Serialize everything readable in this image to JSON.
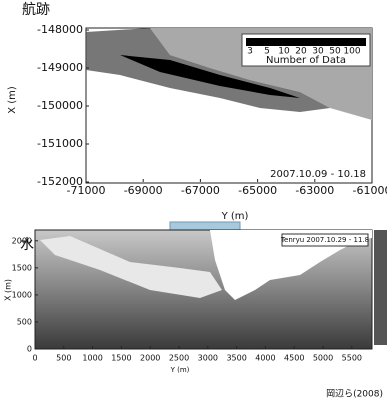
{
  "top": {
    "heading": "航跡",
    "xlabel": "Y (m)",
    "ylabel": "X (m)",
    "xlim": [
      -71000,
      -61000
    ],
    "xticks": [
      -71000,
      -69000,
      -67000,
      -65000,
      -63000,
      -61000
    ],
    "ylim": [
      -152000,
      -148000
    ],
    "yticks": [
      -152000,
      -151000,
      -150000,
      -149000,
      -148000
    ],
    "legend_ticks": [
      3,
      5,
      10,
      20,
      30,
      50,
      100
    ],
    "legend_title": "Number of Data",
    "date": "2007.10.09 - 10.18"
  },
  "bottom": {
    "heading": "水深図",
    "xlabel": "Y (m)",
    "ylabel": "X (m)",
    "xlim": [
      0,
      5850
    ],
    "xticks": [
      0,
      500,
      1000,
      1500,
      2000,
      2500,
      3000,
      3500,
      4000,
      4500,
      5000,
      5500
    ],
    "ylim": [
      0,
      2200
    ],
    "yticks": [
      0,
      500,
      1000,
      1500,
      2000
    ],
    "box_label": "Tenryu  2007.10.29 - 11.8",
    "credit": "岡辺ら(2008)"
  }
}
